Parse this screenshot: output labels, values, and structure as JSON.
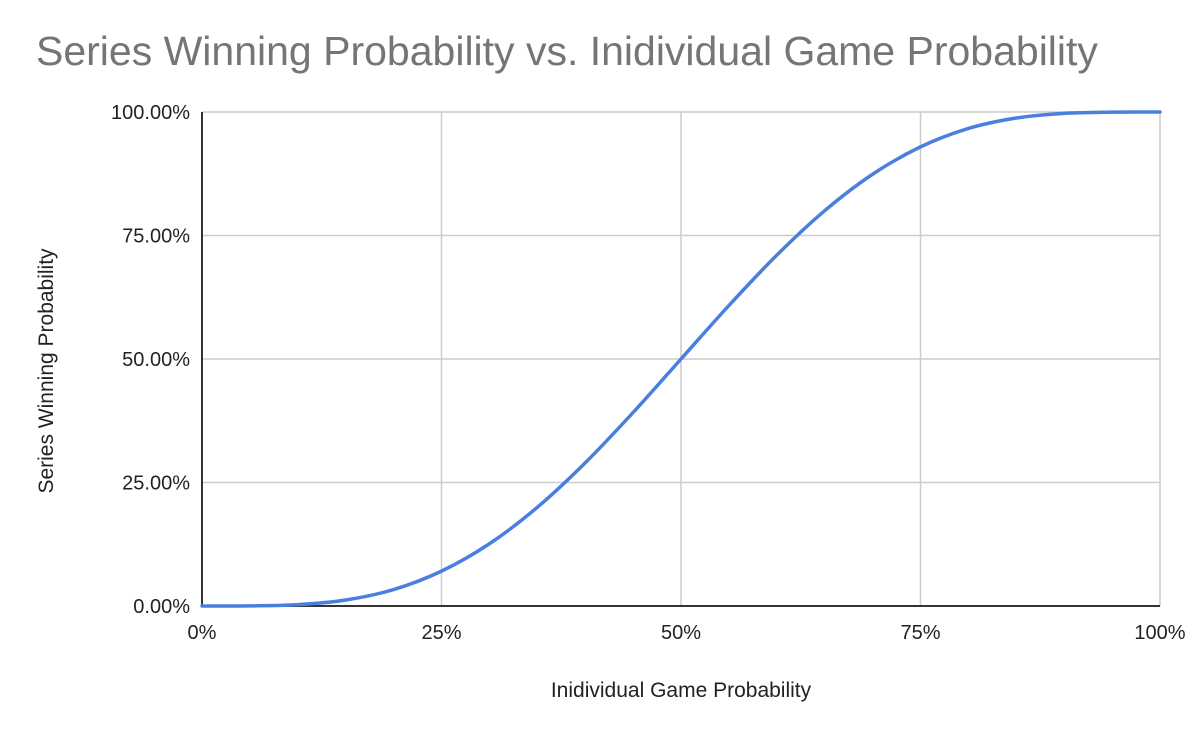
{
  "chart_data": {
    "type": "line",
    "title": "Series Winning Probability vs. Inidividual Game Probability",
    "xlabel": "Inidividual Game Probability",
    "ylabel": "Series Winning Probability",
    "xlim": [
      0,
      1
    ],
    "ylim": [
      0,
      1
    ],
    "grid": true,
    "legend": "none",
    "x_ticks": [
      "0%",
      "25%",
      "50%",
      "75%",
      "100%"
    ],
    "y_ticks": [
      "0.00%",
      "25.00%",
      "50.00%",
      "75.00%",
      "100.00%"
    ],
    "line_color": "#4a7fe0",
    "series": [
      {
        "x": [
          0,
          0.05,
          0.1,
          0.15,
          0.2,
          0.25,
          0.3,
          0.35,
          0.4,
          0.45,
          0.5,
          0.55,
          0.6,
          0.65,
          0.7,
          0.75,
          0.8,
          0.85,
          0.9,
          0.95,
          1.0
        ],
        "values": [
          0,
          0.0002,
          0.0027,
          0.0121,
          0.0333,
          0.0706,
          0.126,
          0.1998,
          0.2898,
          0.3917,
          0.5,
          0.6083,
          0.7102,
          0.8002,
          0.874,
          0.9294,
          0.9667,
          0.9879,
          0.9973,
          0.9998,
          1.0
        ]
      }
    ]
  }
}
